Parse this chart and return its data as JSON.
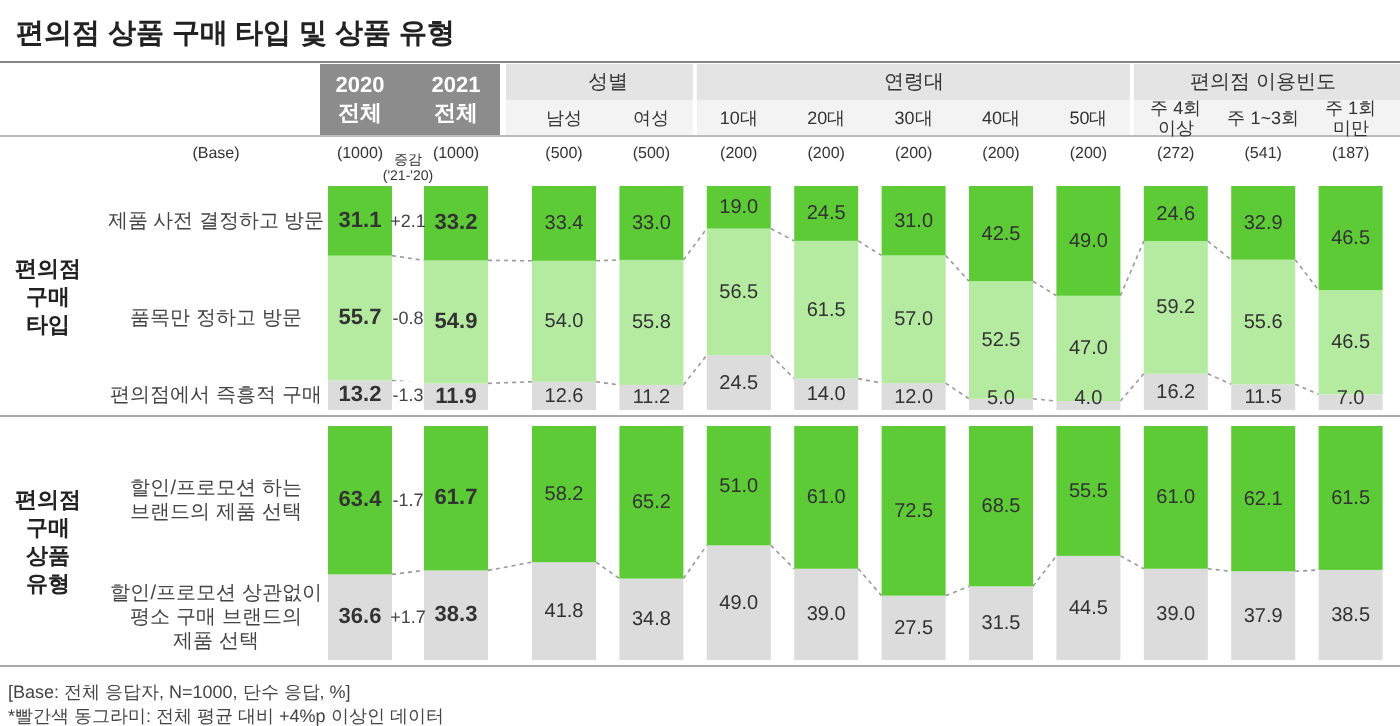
{
  "chart_data": [
    {
      "type": "bar",
      "stacked": true,
      "title": "편의점 상품 구매 타입 및 상품 유형",
      "ylabel": "편의점\n구매\n타입",
      "categories": [
        "2020\n전체\n(1000)",
        "2021\n전체\n(1000)",
        "남성\n(500)",
        "여성\n(500)",
        "10대\n(200)",
        "20대\n(200)",
        "30대\n(200)",
        "40대\n(200)",
        "50대\n(200)",
        "주 4회\n이상\n(272)",
        "주 1~3회\n(541)",
        "주 1회\n미만\n(187)"
      ],
      "series": [
        {
          "name": "편의점에서 즉흥적 구매",
          "color": "#dcdcdc",
          "values": [
            13.2,
            11.9,
            12.6,
            11.2,
            24.5,
            14.0,
            12.0,
            5.0,
            4.0,
            16.2,
            11.5,
            7.0
          ],
          "value_labels": [
            "13.2",
            "11.9",
            "12.6",
            "11.2",
            "24.5",
            "14.0",
            "12.0",
            "5.0",
            "4.0",
            "16.2",
            "11.5",
            "7.0"
          ]
        },
        {
          "name": "품목만 정하고 방문",
          "color": "#b5eba0",
          "values": [
            55.7,
            54.9,
            54.0,
            55.8,
            56.5,
            61.5,
            57.0,
            52.5,
            47.0,
            59.2,
            55.6,
            46.5
          ],
          "value_labels": [
            "55.7",
            "54.9",
            "54.0",
            "55.8",
            "56.5",
            "61.5",
            "57.0",
            "52.5",
            "47.0",
            "59.2",
            "55.6",
            "46.5"
          ]
        },
        {
          "name": "제품 사전 결정하고 방문",
          "color": "#5ccb35",
          "values": [
            31.1,
            33.2,
            33.4,
            33.0,
            19.0,
            24.5,
            31.0,
            42.5,
            49.0,
            24.6,
            32.9,
            46.5
          ],
          "value_labels": [
            "31.1",
            "33.2",
            "33.4",
            "33.0",
            "19.0",
            "24.5",
            "31.0",
            "42.5",
            "49.0",
            "24.6",
            "32.9",
            "46.5"
          ]
        }
      ],
      "annotations": [
        "(Base)",
        "성별",
        "연령대",
        "편의점 이용빈도",
        "증감\n('21-'20)",
        "+2.1",
        "-0.8",
        "-1.3"
      ]
    },
    {
      "type": "bar",
      "stacked": true,
      "tick_labels": false,
      "ylabel": "편의점\n구매\n상품\n유형",
      "categories": [
        null,
        null,
        null,
        null,
        null,
        null,
        null,
        null,
        null,
        null,
        null,
        null
      ],
      "series": [
        {
          "name": "할인/프로모션 상관없이\n평소 구매 브랜드의\n제품 선택",
          "color": "#dcdcdc",
          "values": [
            36.6,
            38.3,
            41.8,
            34.8,
            49.0,
            39.0,
            27.5,
            31.5,
            44.5,
            39.0,
            37.9,
            38.5
          ],
          "value_labels": [
            "36.6",
            "38.3",
            "41.8",
            "34.8",
            "49.0",
            "39.0",
            "27.5",
            "31.5",
            "44.5",
            "39.0",
            "37.9",
            "38.5"
          ]
        },
        {
          "name": "할인/프로모션 하는\n브랜드의 제품 선택",
          "color": "#5ccb35",
          "values": [
            63.4,
            61.7,
            58.2,
            65.2,
            51.0,
            61.0,
            72.5,
            68.5,
            55.5,
            61.0,
            62.1,
            61.5
          ],
          "value_labels": [
            "63.4",
            "61.7",
            "58.2",
            "65.2",
            "51.0",
            "61.0",
            "72.5",
            "68.5",
            "55.5",
            "61.0",
            "62.1",
            "61.5"
          ]
        }
      ],
      "annotations": [
        "-1.7",
        "+1.7",
        "[Base: 전체 응답자, N=1000, 단수 응답, %]",
        "*빨간색 동그라미: 전체 평균 대비 +4%p 이상인 데이터"
      ]
    }
  ]
}
